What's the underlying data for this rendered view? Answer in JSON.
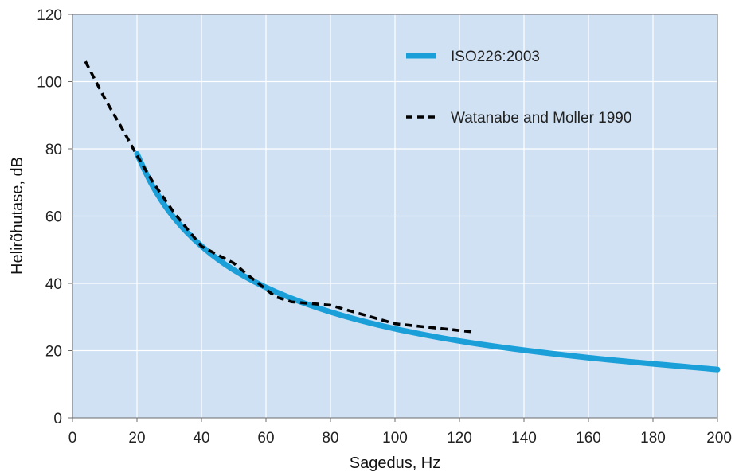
{
  "chart_data": {
    "type": "line",
    "title": "",
    "xlabel": "Sagedus, Hz",
    "ylabel": "Helirõhutase, dB",
    "xlim": [
      0,
      200
    ],
    "ylim": [
      0,
      120
    ],
    "xticks": [
      0,
      20,
      40,
      60,
      80,
      100,
      120,
      140,
      160,
      180,
      200
    ],
    "yticks": [
      0,
      20,
      40,
      60,
      80,
      100,
      120
    ],
    "grid": true,
    "legend_position": "top-right",
    "colors": {
      "plot_background": "#cfe1f3",
      "grid": "#ffffff",
      "iso_series": "#1a9fd9",
      "watanabe_series": "#000000"
    },
    "series": [
      {
        "name": "ISO226:2003",
        "style": "solid",
        "x": [
          20,
          25,
          31.5,
          40,
          50,
          63,
          80,
          100,
          125,
          160,
          200
        ],
        "y": [
          78.5,
          68.7,
          59.5,
          51.1,
          44.0,
          37.5,
          31.5,
          26.5,
          22.1,
          17.9,
          14.4
        ]
      },
      {
        "name": "Watanabe and Moller 1990",
        "style": "dashed",
        "x": [
          4,
          10,
          16,
          20,
          25,
          31.5,
          40,
          50,
          55,
          63,
          68,
          80,
          100,
          110,
          125
        ],
        "y": [
          106,
          95,
          85,
          78,
          70,
          61,
          51,
          46,
          42,
          36,
          34.5,
          33.5,
          28,
          27,
          25.5
        ]
      }
    ]
  }
}
